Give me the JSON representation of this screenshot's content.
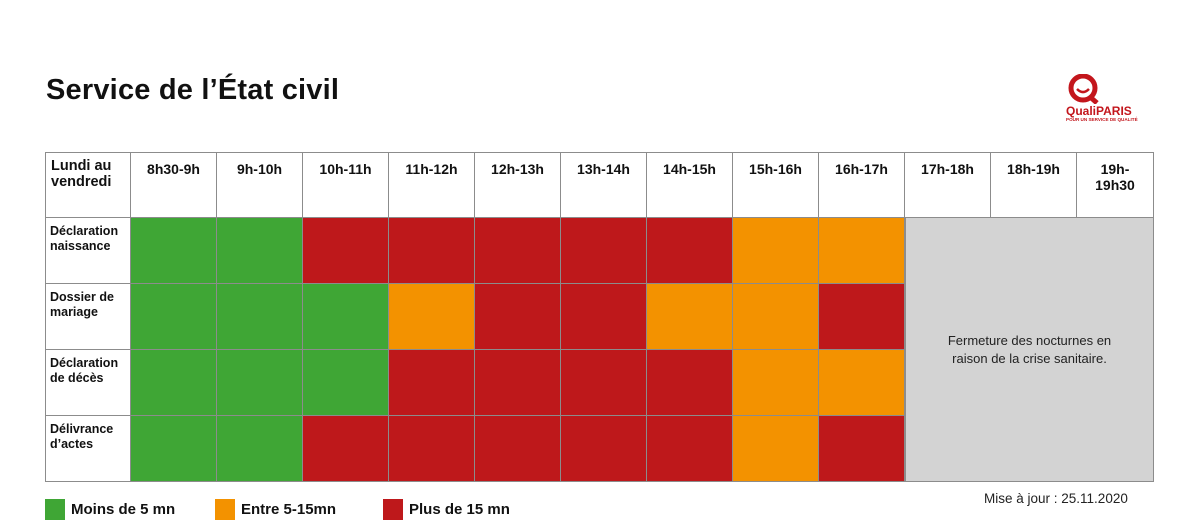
{
  "title": "Service de l’État civil",
  "logo": {
    "name": "QualiPARIS",
    "tagline": "POUR UN SERVICE DE QUALITÉ"
  },
  "colors": {
    "green": "#3fa635",
    "orange": "#f39200",
    "red": "#be181b",
    "closed": "#d3d3d3",
    "logo_red": "#c3161c"
  },
  "table": {
    "corner_label": "Lundi au vendredi",
    "time_slots": [
      "8h30-9h",
      "9h-10h",
      "10h-11h",
      "11h-12h",
      "12h-13h",
      "13h-14h",
      "14h-15h",
      "15h-16h",
      "16h-17h",
      "17h-18h",
      "18h-19h",
      "19h-19h30"
    ],
    "rows": [
      {
        "label": "Déclaration naissance",
        "levels": [
          "green",
          "green",
          "red",
          "red",
          "red",
          "red",
          "red",
          "orange",
          "orange"
        ]
      },
      {
        "label": "Dossier de mariage",
        "levels": [
          "green",
          "green",
          "green",
          "orange",
          "red",
          "red",
          "orange",
          "orange",
          "red"
        ]
      },
      {
        "label": "Déclaration de décès",
        "levels": [
          "green",
          "green",
          "green",
          "red",
          "red",
          "red",
          "red",
          "orange",
          "orange"
        ]
      },
      {
        "label": "Délivrance d’actes",
        "levels": [
          "green",
          "green",
          "red",
          "red",
          "red",
          "red",
          "red",
          "orange",
          "red"
        ]
      }
    ],
    "closed_note": "Fermeture des nocturnes en raison de la crise sanitaire."
  },
  "legend": [
    {
      "color": "green",
      "label": "Moins de 5 mn"
    },
    {
      "color": "orange",
      "label": "Entre 5-15mn"
    },
    {
      "color": "red",
      "label": "Plus de 15 mn"
    }
  ],
  "updated": "Mise à jour : 25.11.2020"
}
